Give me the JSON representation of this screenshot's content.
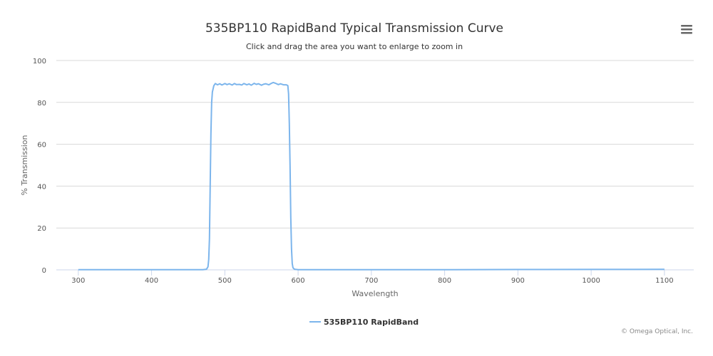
{
  "chart_data": {
    "type": "line",
    "title": "535BP110 RapidBand Typical Transmission Curve",
    "subtitle": "Click and drag the area you want to enlarge to zoom in",
    "xlabel": "Wavelength",
    "ylabel": "% Transmission",
    "xlim": [
      270,
      1140
    ],
    "ylim": [
      0,
      100
    ],
    "x_ticks": [
      300,
      400,
      500,
      600,
      700,
      800,
      900,
      1000,
      1100
    ],
    "y_ticks": [
      0,
      20,
      40,
      60,
      80,
      100
    ],
    "grid": true,
    "legend_position": "bottom-center",
    "series": [
      {
        "name": "535BP110 RapidBand",
        "color": "#7cb5ec",
        "points": [
          [
            300,
            0.1
          ],
          [
            400,
            0.1
          ],
          [
            470,
            0.1
          ],
          [
            475,
            0.3
          ],
          [
            477,
            1.5
          ],
          [
            478,
            5
          ],
          [
            479,
            15
          ],
          [
            480,
            40
          ],
          [
            481,
            65
          ],
          [
            482,
            80
          ],
          [
            483,
            85
          ],
          [
            485,
            88
          ],
          [
            487,
            89
          ],
          [
            490,
            88.4
          ],
          [
            493,
            88.9
          ],
          [
            496,
            88.3
          ],
          [
            500,
            89
          ],
          [
            503,
            88.5
          ],
          [
            506,
            88.9
          ],
          [
            510,
            88.3
          ],
          [
            513,
            89
          ],
          [
            516,
            88.5
          ],
          [
            520,
            88.6
          ],
          [
            523,
            88.3
          ],
          [
            526,
            89
          ],
          [
            530,
            88.4
          ],
          [
            533,
            88.8
          ],
          [
            536,
            88.2
          ],
          [
            540,
            89.1
          ],
          [
            543,
            88.6
          ],
          [
            546,
            88.9
          ],
          [
            550,
            88.2
          ],
          [
            553,
            88.7
          ],
          [
            556,
            88.9
          ],
          [
            560,
            88.4
          ],
          [
            563,
            89
          ],
          [
            566,
            89.5
          ],
          [
            570,
            89
          ],
          [
            573,
            88.5
          ],
          [
            576,
            88.9
          ],
          [
            580,
            88.4
          ],
          [
            584,
            88.4
          ],
          [
            586,
            88
          ],
          [
            587,
            84
          ],
          [
            588,
            70
          ],
          [
            589,
            50
          ],
          [
            590,
            25
          ],
          [
            591,
            10
          ],
          [
            592,
            3
          ],
          [
            593,
            1
          ],
          [
            595,
            0.3
          ],
          [
            600,
            0.1
          ],
          [
            700,
            0.1
          ],
          [
            800,
            0.1
          ],
          [
            900,
            0.15
          ],
          [
            1000,
            0.2
          ],
          [
            1100,
            0.25
          ]
        ]
      }
    ]
  },
  "menu": {
    "icon": "hamburger-menu-icon"
  },
  "credits": {
    "text": "© Omega Optical, Inc."
  }
}
